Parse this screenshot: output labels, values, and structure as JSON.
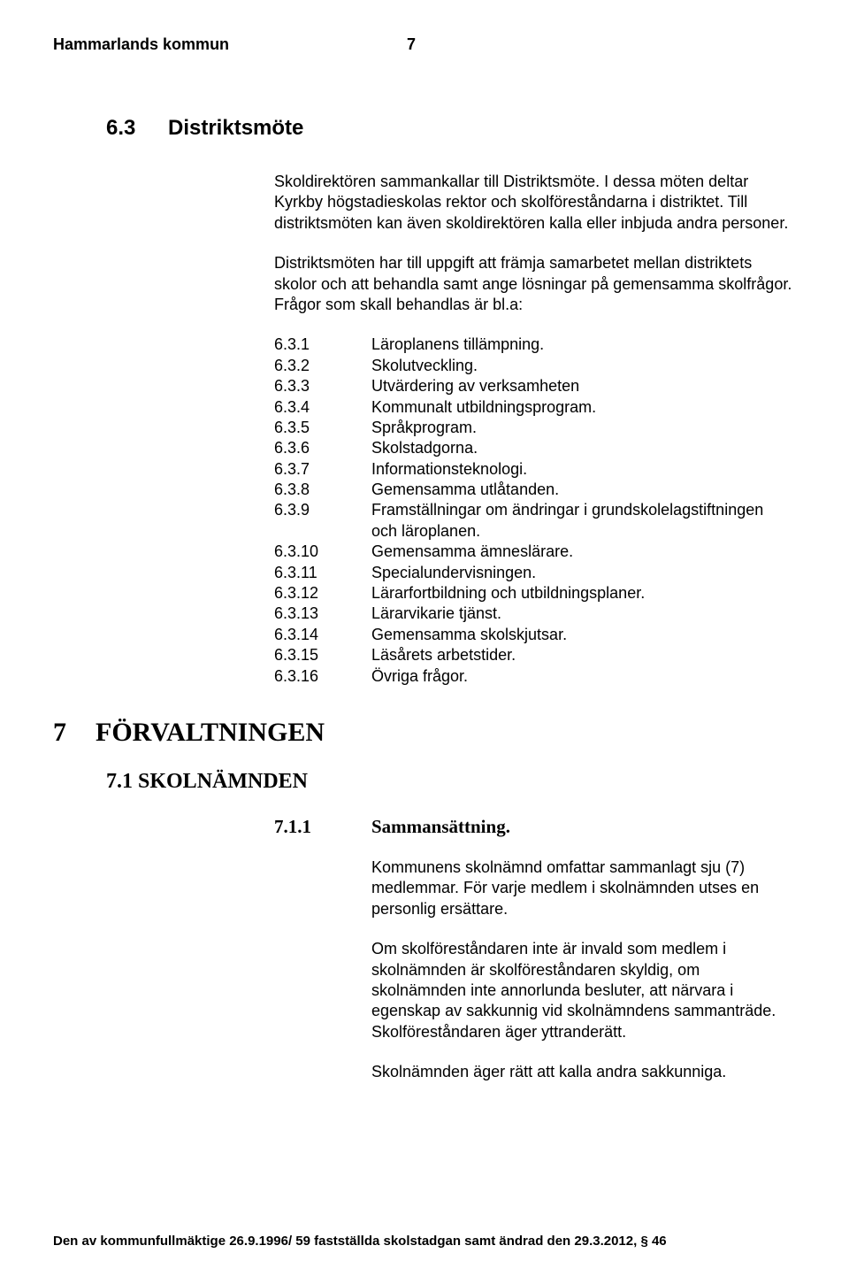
{
  "header": {
    "org": "Hammarlands kommun",
    "page_number": "7"
  },
  "section63": {
    "number": "6.3",
    "title": "Distriktsmöte",
    "para1": "Skoldirektören sammankallar till Distriktsmöte. I dessa möten deltar Kyrkby högstadieskolas rektor och skolföreståndarna i distriktet. Till distriktsmöten kan även skoldirektören kalla eller inbjuda andra personer.",
    "para2": "Distriktsmöten har till uppgift att främja samarbetet mellan distriktets skolor och att behandla samt ange lösningar på gemensamma skolfrågor. Frågor som skall behandlas är bl.a:",
    "items": [
      {
        "num": "6.3.1",
        "text": "Läroplanens tillämpning."
      },
      {
        "num": "6.3.2",
        "text": "Skolutveckling."
      },
      {
        "num": "6.3.3",
        "text": "Utvärdering av verksamheten"
      },
      {
        "num": "6.3.4",
        "text": "Kommunalt utbildningsprogram."
      },
      {
        "num": "6.3.5",
        "text": "Språkprogram."
      },
      {
        "num": "6.3.6",
        "text": "Skolstadgorna."
      },
      {
        "num": "6.3.7",
        "text": "Informationsteknologi."
      },
      {
        "num": "6.3.8",
        "text": "Gemensamma utlåtanden."
      },
      {
        "num": "6.3.9",
        "text": "Framställningar om ändringar i grundskolelagstiftningen och läroplanen."
      },
      {
        "num": "6.3.10",
        "text": "Gemensamma ämneslärare."
      },
      {
        "num": "6.3.11",
        "text": "Specialundervisningen."
      },
      {
        "num": "6.3.12",
        "text": "Lärarfortbildning och utbildningsplaner."
      },
      {
        "num": "6.3.13",
        "text": "Lärarvikarie tjänst."
      },
      {
        "num": "6.3.14",
        "text": "Gemensamma skolskjutsar."
      },
      {
        "num": "6.3.15",
        "text": "Läsårets arbetstider."
      },
      {
        "num": "6.3.16",
        "text": "Övriga frågor."
      }
    ]
  },
  "section7": {
    "number": "7",
    "title": "FÖRVALTNINGEN",
    "sub71": {
      "label": "7.1 SKOLNÄMNDEN",
      "sub711": {
        "number": "7.1.1",
        "title": "Sammansättning.",
        "para1": "Kommunens skolnämnd omfattar sammanlagt sju (7) medlemmar. För varje medlem i skolnämnden utses en personlig ersättare.",
        "para2": "Om skolföreståndaren inte är invald som medlem i skolnämnden är skolföreståndaren skyldig, om skolnämnden inte annorlunda besluter, att närvara i egenskap av sakkunnig vid skolnämndens sammanträde. Skolföreståndaren äger yttranderätt.",
        "para3": "Skolnämnden äger rätt att kalla andra sakkunniga."
      }
    }
  },
  "footer": "Den av kommunfullmäktige 26.9.1996/ 59 fastställda skolstadgan samt ändrad den 29.3.2012, § 46"
}
